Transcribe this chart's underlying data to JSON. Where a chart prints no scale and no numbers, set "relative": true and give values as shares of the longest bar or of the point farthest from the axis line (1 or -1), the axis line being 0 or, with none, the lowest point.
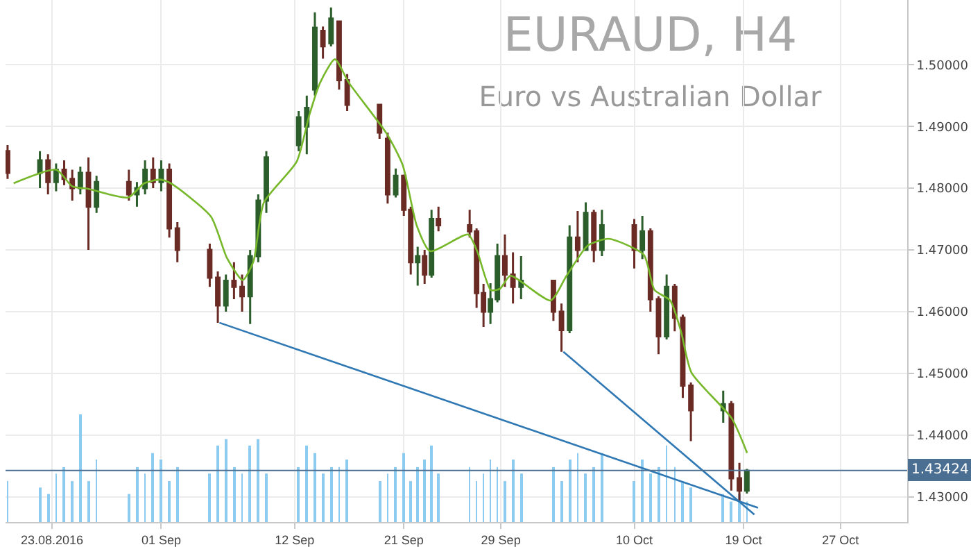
{
  "chart_data": [
    {
      "type": "bar",
      "relative": true,
      "tick_labels": false,
      "grid": "x",
      "color": "#8ecbf0",
      "xlim": [
        "2016-08-19T04:00",
        "2016-11-01T12:00"
      ],
      "x": [
        "2016-08-19T08:00",
        "2016-08-22T00:00",
        "2016-08-22T16:00",
        "2016-08-23T08:00",
        "2016-08-24T00:00",
        "2016-08-24T16:00",
        "2016-08-25T08:00",
        "2016-08-26T00:00",
        "2016-08-26T16:00",
        "2016-08-29T08:00",
        "2016-08-30T00:00",
        "2016-08-30T16:00",
        "2016-08-31T08:00",
        "2016-09-01T00:00",
        "2016-09-01T16:00",
        "2016-09-02T08:00",
        "2016-09-05T00:00",
        "2016-09-05T16:00",
        "2016-09-06T08:00",
        "2016-09-07T00:00",
        "2016-09-07T16:00",
        "2016-09-08T08:00",
        "2016-09-09T00:00",
        "2016-09-09T16:00",
        "2016-09-12T08:00",
        "2016-09-13T00:00",
        "2016-09-13T16:00",
        "2016-09-14T08:00",
        "2016-09-15T00:00",
        "2016-09-15T16:00",
        "2016-09-16T08:00",
        "2016-09-19T00:00",
        "2016-09-19T16:00",
        "2016-09-20T08:00",
        "2016-09-21T00:00",
        "2016-09-21T13:43",
        "2016-09-22T03:26",
        "2016-09-22T17:09",
        "2016-09-23T06:51",
        "2016-09-23T20:34",
        "2016-09-26T10:17",
        "2016-09-27T00:00",
        "2016-09-27T13:43",
        "2016-09-28T03:26",
        "2016-09-28T17:09",
        "2016-09-29T08:00",
        "2016-09-30T00:00",
        "2016-09-30T16:00",
        "2016-10-03T08:00",
        "2016-10-04T00:00",
        "2016-10-04T16:00",
        "2016-10-05T08:00",
        "2016-10-06T00:00",
        "2016-10-06T16:00",
        "2016-10-07T08:00",
        "2016-10-10T00:00",
        "2016-10-10T16:00",
        "2016-10-11T08:00",
        "2016-10-12T00:00",
        "2016-10-12T16:00",
        "2016-10-13T08:00",
        "2016-10-14T00:00",
        "2016-10-14T16:00",
        "2016-10-17T08:00",
        "2016-10-18T00:00",
        "2016-10-18T16:00",
        "2016-10-19T06:51"
      ],
      "values": [
        0.38,
        0.32,
        0.26,
        0.45,
        0.51,
        0.38,
        1.0,
        0.38,
        0.58,
        0.26,
        0.51,
        0.45,
        0.64,
        0.58,
        0.38,
        0.51,
        0.45,
        0.71,
        0.77,
        0.51,
        0.45,
        0.71,
        0.77,
        0.45,
        0.51,
        0.71,
        0.64,
        0.45,
        0.51,
        0.51,
        0.58,
        0.38,
        0.45,
        0.51,
        0.64,
        0.38,
        0.51,
        0.58,
        0.71,
        0.45,
        0.51,
        0.38,
        0.45,
        0.58,
        0.51,
        0.38,
        0.58,
        0.45,
        0.51,
        0.38,
        0.58,
        0.64,
        0.45,
        0.51,
        0.64,
        0.38,
        0.58,
        0.45,
        0.51,
        0.71,
        0.51,
        0.38,
        0.32,
        0.26,
        0.19,
        0.26,
        0.19
      ]
    },
    {
      "type": "candlestick",
      "title": "EURAUD, H4",
      "subtitle": "Euro vs Australian Dollar",
      "x": [
        "2016-08-19T08:00",
        "2016-08-22T00:00",
        "2016-08-22T16:00",
        "2016-08-23T08:00",
        "2016-08-24T00:00",
        "2016-08-24T16:00",
        "2016-08-25T08:00",
        "2016-08-26T00:00",
        "2016-08-26T16:00",
        "2016-08-29T08:00",
        "2016-08-30T00:00",
        "2016-08-30T16:00",
        "2016-08-31T08:00",
        "2016-09-01T00:00",
        "2016-09-01T16:00",
        "2016-09-02T08:00",
        "2016-09-05T00:00",
        "2016-09-05T16:00",
        "2016-09-06T08:00",
        "2016-09-07T00:00",
        "2016-09-07T16:00",
        "2016-09-08T08:00",
        "2016-09-09T00:00",
        "2016-09-09T16:00",
        "2016-09-12T08:00",
        "2016-09-13T00:00",
        "2016-09-13T16:00",
        "2016-09-14T08:00",
        "2016-09-15T00:00",
        "2016-09-15T16:00",
        "2016-09-16T08:00",
        "2016-09-19T00:00",
        "2016-09-19T16:00",
        "2016-09-20T08:00",
        "2016-09-21T00:00",
        "2016-09-21T13:43",
        "2016-09-22T03:26",
        "2016-09-22T17:09",
        "2016-09-23T06:51",
        "2016-09-23T20:34",
        "2016-09-26T10:17",
        "2016-09-27T00:00",
        "2016-09-27T13:43",
        "2016-09-28T03:26",
        "2016-09-28T17:09",
        "2016-09-29T08:00",
        "2016-09-30T00:00",
        "2016-09-30T16:00",
        "2016-10-03T08:00",
        "2016-10-04T00:00",
        "2016-10-04T16:00",
        "2016-10-05T08:00",
        "2016-10-06T00:00",
        "2016-10-06T16:00",
        "2016-10-07T08:00",
        "2016-10-10T00:00",
        "2016-10-10T16:00",
        "2016-10-11T08:00",
        "2016-10-12T00:00",
        "2016-10-12T16:00",
        "2016-10-13T08:00",
        "2016-10-14T00:00",
        "2016-10-14T16:00",
        "2016-10-17T08:00",
        "2016-10-18T00:00",
        "2016-10-18T16:00",
        "2016-10-19T06:51"
      ],
      "ohlc": [
        [
          1.486,
          1.487,
          1.4815,
          1.4825
        ],
        [
          1.4825,
          1.486,
          1.48,
          1.4845
        ],
        [
          1.4845,
          1.4855,
          1.479,
          1.481
        ],
        [
          1.481,
          1.484,
          1.4795,
          1.483
        ],
        [
          1.483,
          1.4845,
          1.4805,
          1.4815
        ],
        [
          1.4815,
          1.483,
          1.478,
          1.48
        ],
        [
          1.48,
          1.4835,
          1.479,
          1.4825
        ],
        [
          1.4825,
          1.485,
          1.47,
          1.477
        ],
        [
          1.477,
          1.482,
          1.476,
          1.481
        ],
        [
          1.481,
          1.483,
          1.478,
          1.479
        ],
        [
          1.479,
          1.481,
          1.477,
          1.48
        ],
        [
          1.48,
          1.4845,
          1.479,
          1.483
        ],
        [
          1.483,
          1.485,
          1.48,
          1.481
        ],
        [
          1.481,
          1.4845,
          1.4795,
          1.483
        ],
        [
          1.483,
          1.484,
          1.472,
          1.4735
        ],
        [
          1.4735,
          1.4745,
          1.468,
          1.47
        ],
        [
          1.47,
          1.471,
          1.464,
          1.4655
        ],
        [
          1.4655,
          1.4665,
          1.4582,
          1.461
        ],
        [
          1.461,
          1.466,
          1.46,
          1.465
        ],
        [
          1.465,
          1.468,
          1.462,
          1.464
        ],
        [
          1.464,
          1.466,
          1.46,
          1.4625
        ],
        [
          1.4625,
          1.47,
          1.458,
          1.469
        ],
        [
          1.469,
          1.479,
          1.468,
          1.478
        ],
        [
          1.478,
          1.486,
          1.476,
          1.485
        ],
        [
          1.487,
          1.4925,
          1.486,
          1.4915
        ],
        [
          1.49,
          1.495,
          1.4855,
          1.493
        ],
        [
          1.496,
          1.5085,
          1.495,
          1.506
        ],
        [
          1.5055,
          1.5062,
          1.501,
          1.503
        ],
        [
          1.5035,
          1.5093,
          1.503,
          1.5075
        ],
        [
          1.507,
          1.507,
          1.496,
          1.4975
        ],
        [
          1.4975,
          1.4985,
          1.4925,
          1.4935
        ],
        [
          1.4935,
          1.4935,
          1.488,
          1.489
        ],
        [
          1.488,
          1.489,
          1.4775,
          1.479
        ],
        [
          1.479,
          1.4832,
          1.4785,
          1.482
        ],
        [
          1.482,
          1.4822,
          1.4755,
          1.4765
        ],
        [
          1.4765,
          1.477,
          1.466,
          1.468
        ],
        [
          1.468,
          1.4705,
          1.4642,
          1.469
        ],
        [
          1.469,
          1.47,
          1.4645,
          1.466
        ],
        [
          1.466,
          1.4765,
          1.4655,
          1.475
        ],
        [
          1.475,
          1.477,
          1.473,
          1.474
        ],
        [
          1.474,
          1.4765,
          1.472,
          1.473
        ],
        [
          1.473,
          1.4735,
          1.4606,
          1.463
        ],
        [
          1.463,
          1.4645,
          1.4575,
          1.46
        ],
        [
          1.46,
          1.4646,
          1.458,
          1.462
        ],
        [
          1.462,
          1.471,
          1.4615,
          1.469
        ],
        [
          1.469,
          1.4725,
          1.464,
          1.466
        ],
        [
          1.466,
          1.4696,
          1.4613,
          1.464
        ],
        [
          1.464,
          1.469,
          1.462,
          1.465
        ],
        [
          1.465,
          1.4651,
          1.4585,
          1.46
        ],
        [
          1.46,
          1.4613,
          1.4535,
          1.457
        ],
        [
          1.457,
          1.474,
          1.4565,
          1.472
        ],
        [
          1.472,
          1.4763,
          1.468,
          1.47
        ],
        [
          1.47,
          1.4777,
          1.47,
          1.476
        ],
        [
          1.476,
          1.4765,
          1.468,
          1.47
        ],
        [
          1.47,
          1.4765,
          1.469,
          1.474
        ],
        [
          1.474,
          1.475,
          1.467,
          1.47
        ],
        [
          1.47,
          1.4755,
          1.4685,
          1.473
        ],
        [
          1.473,
          1.4735,
          1.46,
          1.462
        ],
        [
          1.462,
          1.4625,
          1.4531,
          1.456
        ],
        [
          1.456,
          1.466,
          1.4555,
          1.464
        ],
        [
          1.464,
          1.4645,
          1.4568,
          1.459
        ],
        [
          1.459,
          1.4595,
          1.446,
          1.448
        ],
        [
          1.448,
          1.4485,
          1.439,
          1.444
        ],
        [
          1.444,
          1.4472,
          1.442,
          1.445
        ],
        [
          1.445,
          1.4455,
          1.431,
          1.433
        ],
        [
          1.433,
          1.4355,
          1.4293,
          1.431
        ],
        [
          1.431,
          1.4345,
          1.4305,
          1.4342
        ]
      ],
      "colors": [
        "#6b2b25",
        "#2b5e2b",
        "#6b2b25",
        "#2b5e2b",
        "#6b2b25",
        "#6b2b25",
        "#2b5e2b",
        "#6b2b25",
        "#2b5e2b",
        "#6b2b25",
        "#2b5e2b",
        "#2b5e2b",
        "#6b2b25",
        "#2b5e2b",
        "#6b2b25",
        "#6b2b25",
        "#6b2b25",
        "#6b2b25",
        "#2b5e2b",
        "#6b2b25",
        "#6b2b25",
        "#2b5e2b",
        "#2b5e2b",
        "#2b5e2b",
        "#2b5e2b",
        "#2b5e2b",
        "#2b5e2b",
        "#6b2b25",
        "#2b5e2b",
        "#6b2b25",
        "#6b2b25",
        "#6b2b25",
        "#6b2b25",
        "#2b5e2b",
        "#6b2b25",
        "#6b2b25",
        "#2b5e2b",
        "#6b2b25",
        "#2b5e2b",
        "#6b2b25",
        "#6b2b25",
        "#6b2b25",
        "#6b2b25",
        "#2b5e2b",
        "#2b5e2b",
        "#6b2b25",
        "#6b2b25",
        "#2b5e2b",
        "#6b2b25",
        "#6b2b25",
        "#2b5e2b",
        "#6b2b25",
        "#2b5e2b",
        "#6b2b25",
        "#2b5e2b",
        "#6b2b25",
        "#2b5e2b",
        "#6b2b25",
        "#6b2b25",
        "#2b5e2b",
        "#6b2b25",
        "#6b2b25",
        "#6b2b25",
        "#2b5e2b",
        "#6b2b25",
        "#6b2b25",
        "#2b5e2b"
      ],
      "series": [
        {
          "type": "line",
          "color": "#76b82a",
          "x": [
            "2016-08-19T20:00",
            "2016-08-23T08:24",
            "2016-08-24T16:00",
            "2016-08-25T23:12",
            "2016-08-29T06:48",
            "2016-08-30T14:24",
            "2016-08-31T22:00",
            "2016-09-01T18:48",
            "2016-09-05T02:24",
            "2016-09-06T10:00",
            "2016-09-07T17:12",
            "2016-09-08T14:24",
            "2016-09-09T11:12",
            "2016-09-12T04:00",
            "2016-09-13T05:12",
            "2016-09-14T02:24",
            "2016-09-15T07:36",
            "2016-09-16T11:12",
            "2016-09-19T14:24",
            "2016-09-20T22:00",
            "2016-09-22T01:22",
            "2016-09-23T04:06",
            "2016-09-26T07:12",
            "2016-09-27T01:02",
            "2016-09-28T04:06",
            "2016-09-28T22:17",
            "2016-09-29T18:48",
            "2016-10-03T02:24",
            "2016-10-04T10:00",
            "2016-10-06T04:00",
            "2016-10-07T21:36",
            "2016-10-10T18:48",
            "2016-10-11T16:00",
            "2016-10-12T23:12",
            "2016-10-13T20:24",
            "2016-10-14T17:12",
            "2016-10-18T00:48",
            "2016-10-19T07:12"
          ],
          "values": [
            1.4808,
            1.483,
            1.4803,
            1.4799,
            1.4785,
            1.4808,
            1.4814,
            1.4808,
            1.4754,
            1.4687,
            1.4651,
            1.4681,
            1.4777,
            1.4843,
            1.4919,
            1.4971,
            1.5009,
            1.4971,
            1.4888,
            1.4837,
            1.474,
            1.4698,
            1.4725,
            1.4698,
            1.4635,
            1.4637,
            1.4658,
            1.4618,
            1.4658,
            1.4707,
            1.4718,
            1.4692,
            1.4635,
            1.4618,
            1.4568,
            1.4501,
            1.4427,
            1.4371
          ]
        },
        {
          "type": "line",
          "color": "#2f78b4",
          "x": [
            "2016-09-05T19:12",
            "2016-10-20T04:48"
          ],
          "values": [
            1.4582,
            1.4282
          ]
        },
        {
          "type": "line",
          "color": "#2f78b4",
          "x": [
            "2016-10-04T03:36",
            "2016-10-19T21:36"
          ],
          "values": [
            1.4535,
            1.4271
          ]
        }
      ],
      "xlim": [
        "2016-08-19T04:00",
        "2016-11-01T12:00"
      ],
      "xticks": [
        {
          "value": "2016-08-23",
          "label": "23.08.2016"
        },
        {
          "value": "2016-09-01",
          "label": "01 Sep"
        },
        {
          "value": "2016-09-12",
          "label": "12 Sep"
        },
        {
          "value": "2016-09-21",
          "label": "21 Sep"
        },
        {
          "value": "2016-09-29",
          "label": "29 Sep"
        },
        {
          "value": "2016-10-10",
          "label": "10 Oct"
        },
        {
          "value": "2016-10-19",
          "label": "19 Oct"
        },
        {
          "value": "2016-10-27",
          "label": "27 Oct"
        }
      ],
      "ylim": [
        1.4259,
        1.5105
      ],
      "yticks": [
        {
          "value": 1.43,
          "label": "1.43000"
        },
        {
          "value": 1.44,
          "label": "1.44000"
        },
        {
          "value": 1.45,
          "label": "1.45000"
        },
        {
          "value": 1.46,
          "label": "1.46000"
        },
        {
          "value": 1.47,
          "label": "1.47000"
        },
        {
          "value": 1.48,
          "label": "1.48000"
        },
        {
          "value": 1.49,
          "label": "1.49000"
        },
        {
          "value": 1.5,
          "label": "1.50000"
        }
      ],
      "ref_lines": [
        {
          "axis": "y",
          "value": 1.43424,
          "label": "1.43424",
          "color": "#4a6f93"
        }
      ],
      "grid": true
    }
  ]
}
